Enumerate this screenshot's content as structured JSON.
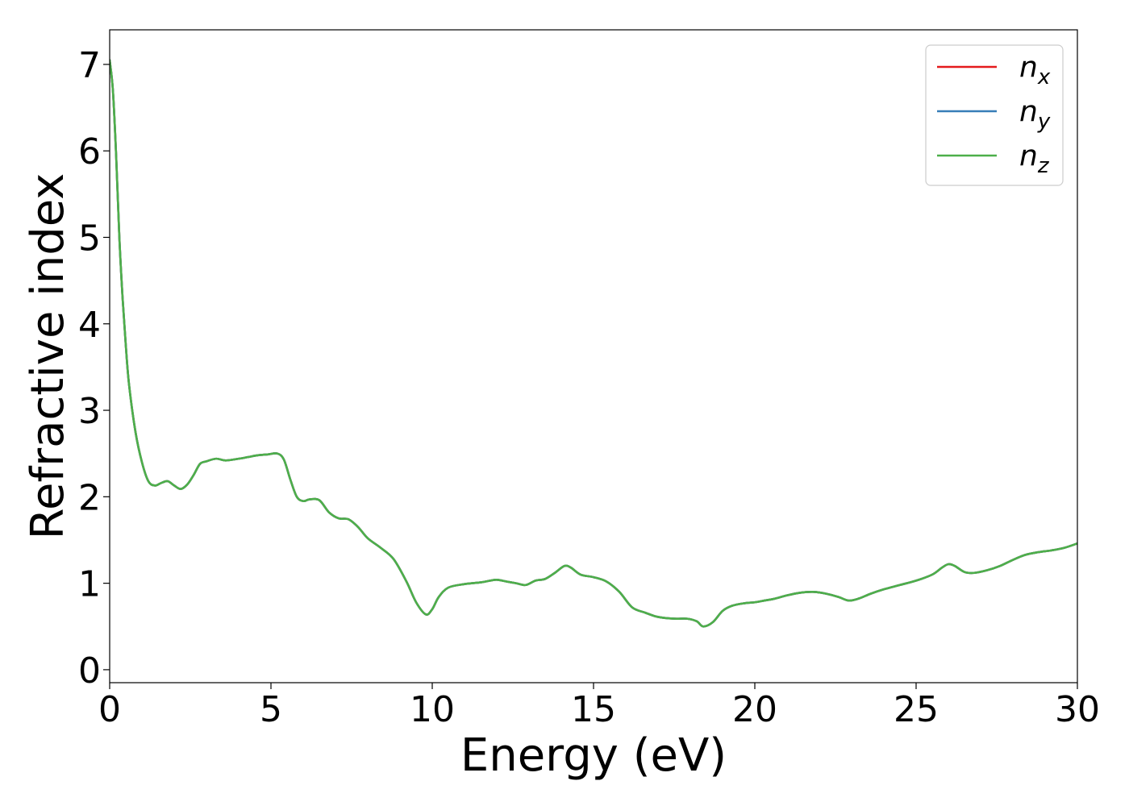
{
  "chart_data": {
    "type": "line",
    "title": "",
    "xlabel": "Energy (eV)",
    "ylabel": "Refractive index",
    "xlim": [
      0,
      30
    ],
    "ylim": [
      -0.15,
      7.4
    ],
    "xticks": [
      0,
      5,
      10,
      15,
      20,
      25,
      30
    ],
    "yticks": [
      0,
      1,
      2,
      3,
      4,
      5,
      6,
      7
    ],
    "xtick_labels": [
      "0",
      "5",
      "10",
      "15",
      "20",
      "25",
      "30"
    ],
    "ytick_labels": [
      "0",
      "1",
      "2",
      "3",
      "4",
      "5",
      "6",
      "7"
    ],
    "grid": false,
    "legend_position": "top-right",
    "colors": {
      "nx": "#e41a1c",
      "ny": "#377eb8",
      "nz": "#4daf4a"
    },
    "legend": [
      {
        "base": "n",
        "sub": "x",
        "color": "#e41a1c"
      },
      {
        "base": "n",
        "sub": "y",
        "color": "#377eb8"
      },
      {
        "base": "n",
        "sub": "z",
        "color": "#4daf4a"
      }
    ],
    "x": [
      0,
      0.1,
      0.2,
      0.3,
      0.4,
      0.5,
      0.6,
      0.8,
      1.0,
      1.2,
      1.4,
      1.6,
      1.8,
      2.0,
      2.2,
      2.4,
      2.6,
      2.8,
      3.0,
      3.3,
      3.6,
      4.0,
      4.3,
      4.6,
      4.9,
      5.2,
      5.4,
      5.6,
      5.8,
      6.0,
      6.2,
      6.5,
      6.8,
      7.1,
      7.4,
      7.7,
      8.0,
      8.4,
      8.8,
      9.2,
      9.5,
      9.8,
      10.0,
      10.2,
      10.5,
      11.0,
      11.5,
      11.8,
      12.0,
      12.3,
      12.6,
      12.9,
      13.2,
      13.5,
      13.8,
      14.1,
      14.3,
      14.6,
      15.0,
      15.4,
      15.8,
      16.2,
      16.6,
      17.0,
      17.5,
      17.9,
      18.2,
      18.4,
      18.7,
      19.0,
      19.3,
      19.7,
      20.0,
      20.3,
      20.6,
      21.0,
      21.4,
      21.8,
      22.2,
      22.6,
      22.9,
      23.2,
      23.6,
      24.0,
      24.5,
      25.0,
      25.5,
      25.8,
      26.0,
      26.2,
      26.5,
      26.8,
      27.2,
      27.6,
      28.0,
      28.4,
      28.8,
      29.2,
      29.6,
      30.0
    ],
    "series": [
      {
        "name": "n_x",
        "color": "#e41a1c",
        "values": [
          7.05,
          6.7,
          5.95,
          5.0,
          4.3,
          3.75,
          3.3,
          2.75,
          2.4,
          2.18,
          2.13,
          2.16,
          2.18,
          2.13,
          2.09,
          2.14,
          2.25,
          2.38,
          2.41,
          2.44,
          2.42,
          2.44,
          2.46,
          2.48,
          2.49,
          2.5,
          2.43,
          2.2,
          2.0,
          1.95,
          1.97,
          1.96,
          1.82,
          1.75,
          1.74,
          1.65,
          1.52,
          1.41,
          1.28,
          1.02,
          0.78,
          0.64,
          0.7,
          0.84,
          0.95,
          0.99,
          1.01,
          1.03,
          1.04,
          1.02,
          1.0,
          0.98,
          1.03,
          1.05,
          1.12,
          1.2,
          1.18,
          1.1,
          1.07,
          1.02,
          0.9,
          0.72,
          0.66,
          0.61,
          0.59,
          0.59,
          0.56,
          0.5,
          0.55,
          0.68,
          0.74,
          0.77,
          0.78,
          0.8,
          0.82,
          0.86,
          0.89,
          0.9,
          0.88,
          0.84,
          0.8,
          0.82,
          0.88,
          0.93,
          0.98,
          1.03,
          1.1,
          1.18,
          1.22,
          1.2,
          1.13,
          1.12,
          1.15,
          1.2,
          1.27,
          1.33,
          1.36,
          1.38,
          1.41,
          1.46
        ]
      },
      {
        "name": "n_y",
        "color": "#377eb8",
        "values": [
          7.05,
          6.7,
          5.95,
          5.0,
          4.3,
          3.75,
          3.3,
          2.75,
          2.4,
          2.18,
          2.13,
          2.16,
          2.18,
          2.13,
          2.09,
          2.14,
          2.25,
          2.38,
          2.41,
          2.44,
          2.42,
          2.44,
          2.46,
          2.48,
          2.49,
          2.5,
          2.43,
          2.2,
          2.0,
          1.95,
          1.97,
          1.96,
          1.82,
          1.75,
          1.74,
          1.65,
          1.52,
          1.41,
          1.28,
          1.02,
          0.78,
          0.64,
          0.7,
          0.84,
          0.95,
          0.99,
          1.01,
          1.03,
          1.04,
          1.02,
          1.0,
          0.98,
          1.03,
          1.05,
          1.12,
          1.2,
          1.18,
          1.1,
          1.07,
          1.02,
          0.9,
          0.72,
          0.66,
          0.61,
          0.59,
          0.59,
          0.56,
          0.5,
          0.55,
          0.68,
          0.74,
          0.77,
          0.78,
          0.8,
          0.82,
          0.86,
          0.89,
          0.9,
          0.88,
          0.84,
          0.8,
          0.82,
          0.88,
          0.93,
          0.98,
          1.03,
          1.1,
          1.18,
          1.22,
          1.2,
          1.13,
          1.12,
          1.15,
          1.2,
          1.27,
          1.33,
          1.36,
          1.38,
          1.41,
          1.46
        ]
      },
      {
        "name": "n_z",
        "color": "#4daf4a",
        "values": [
          7.05,
          6.7,
          5.95,
          5.0,
          4.3,
          3.75,
          3.3,
          2.75,
          2.4,
          2.18,
          2.13,
          2.16,
          2.18,
          2.13,
          2.09,
          2.14,
          2.25,
          2.38,
          2.41,
          2.44,
          2.42,
          2.44,
          2.46,
          2.48,
          2.49,
          2.5,
          2.43,
          2.2,
          2.0,
          1.95,
          1.97,
          1.96,
          1.82,
          1.75,
          1.74,
          1.65,
          1.52,
          1.41,
          1.28,
          1.02,
          0.78,
          0.64,
          0.7,
          0.84,
          0.95,
          0.99,
          1.01,
          1.03,
          1.04,
          1.02,
          1.0,
          0.98,
          1.03,
          1.05,
          1.12,
          1.2,
          1.18,
          1.1,
          1.07,
          1.02,
          0.9,
          0.72,
          0.66,
          0.61,
          0.59,
          0.59,
          0.56,
          0.5,
          0.55,
          0.68,
          0.74,
          0.77,
          0.78,
          0.8,
          0.82,
          0.86,
          0.89,
          0.9,
          0.88,
          0.84,
          0.8,
          0.82,
          0.88,
          0.93,
          0.98,
          1.03,
          1.1,
          1.18,
          1.22,
          1.2,
          1.13,
          1.12,
          1.15,
          1.2,
          1.27,
          1.33,
          1.36,
          1.38,
          1.41,
          1.46
        ]
      }
    ]
  }
}
